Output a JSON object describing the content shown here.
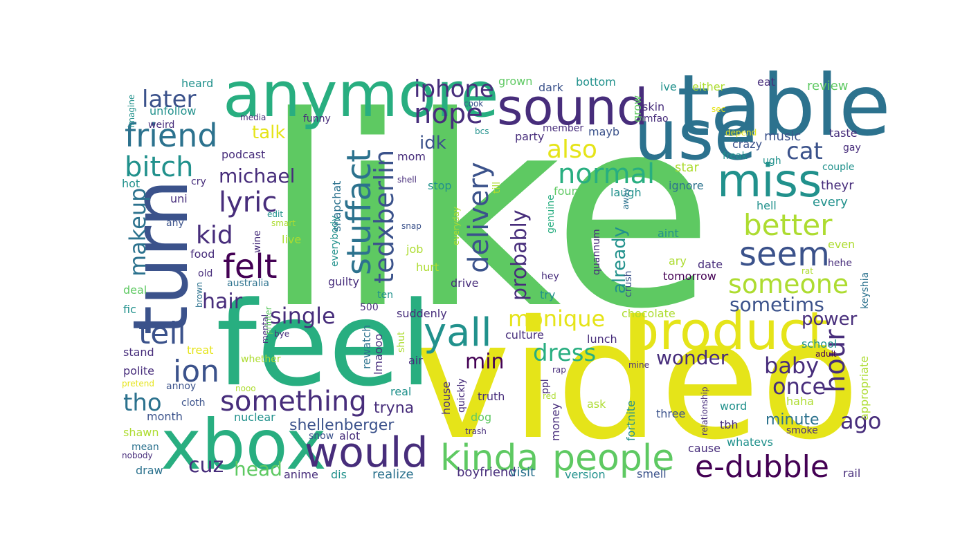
{
  "palette": {
    "purple": "#440154",
    "indigo": "#472d7b",
    "slate": "#3b528b",
    "steel": "#2c728e",
    "teal": "#21918c",
    "sea": "#28ae80",
    "green": "#5ec962",
    "lime": "#addc30",
    "yellow": "#e5e419"
  },
  "words": [
    {
      "text": "like",
      "color": "green"
    },
    {
      "text": "video",
      "color": "yellow"
    },
    {
      "text": "feel",
      "color": "sea"
    },
    {
      "text": "table",
      "color": "steel"
    },
    {
      "text": "use",
      "color": "steel"
    },
    {
      "text": "anymore",
      "color": "sea"
    },
    {
      "text": "sound",
      "color": "indigo"
    },
    {
      "text": "xbox",
      "color": "sea"
    },
    {
      "text": "turn",
      "color": "slate"
    },
    {
      "text": "product",
      "color": "yellow"
    },
    {
      "text": "miss",
      "color": "teal"
    },
    {
      "text": "would",
      "color": "indigo"
    },
    {
      "text": "kinda",
      "color": "green"
    },
    {
      "text": "people",
      "color": "green"
    },
    {
      "text": "friend",
      "color": "steel"
    },
    {
      "text": "bitch",
      "color": "teal"
    },
    {
      "text": "yall",
      "color": "teal"
    },
    {
      "text": "seem",
      "color": "slate"
    },
    {
      "text": "better",
      "color": "lime"
    },
    {
      "text": "e-dubble",
      "color": "purple"
    },
    {
      "text": "stuffact",
      "color": "steel"
    },
    {
      "text": "felt",
      "color": "purple"
    },
    {
      "text": "tedxberlin",
      "color": "slate"
    },
    {
      "text": "delivery",
      "color": "slate"
    },
    {
      "text": "something",
      "color": "indigo"
    },
    {
      "text": "someone",
      "color": "lime"
    },
    {
      "text": "normal",
      "color": "sea"
    },
    {
      "text": "tell",
      "color": "slate"
    },
    {
      "text": "ion",
      "color": "slate"
    },
    {
      "text": "nope",
      "color": "indigo"
    },
    {
      "text": "iphone",
      "color": "indigo"
    },
    {
      "text": "later",
      "color": "slate"
    },
    {
      "text": "lyric",
      "color": "indigo"
    },
    {
      "text": "kid",
      "color": "indigo"
    },
    {
      "text": "also",
      "color": "yellow"
    },
    {
      "text": "cat",
      "color": "slate"
    },
    {
      "text": "hour",
      "color": "indigo"
    },
    {
      "text": "dress",
      "color": "sea"
    },
    {
      "text": "monique",
      "color": "yellow"
    },
    {
      "text": "baby",
      "color": "indigo"
    },
    {
      "text": "once",
      "color": "indigo"
    },
    {
      "text": "ago",
      "color": "indigo"
    },
    {
      "text": "wonder",
      "color": "indigo"
    },
    {
      "text": "sometims",
      "color": "slate"
    },
    {
      "text": "single",
      "color": "indigo"
    },
    {
      "text": "min",
      "color": "purple"
    },
    {
      "text": "tho",
      "color": "steel"
    },
    {
      "text": "hair",
      "color": "indigo"
    },
    {
      "text": "makeup",
      "color": "steel"
    },
    {
      "text": "cuz",
      "color": "indigo"
    },
    {
      "text": "head",
      "color": "green"
    },
    {
      "text": "probably",
      "color": "indigo"
    },
    {
      "text": "power",
      "color": "indigo"
    },
    {
      "text": "talk",
      "color": "yellow"
    },
    {
      "text": "michael",
      "color": "indigo"
    },
    {
      "text": "idk",
      "color": "slate"
    },
    {
      "text": "already",
      "color": "teal"
    },
    {
      "text": "minute",
      "color": "steel"
    },
    {
      "text": "shellenberger",
      "color": "slate"
    },
    {
      "text": "tryna",
      "color": "indigo"
    },
    {
      "text": "realize",
      "color": "steel"
    },
    {
      "text": "boyfriend",
      "color": "indigo"
    },
    {
      "text": "visit",
      "color": "steel"
    },
    {
      "text": "music",
      "color": "slate"
    },
    {
      "text": "star",
      "color": "lime"
    },
    {
      "text": "crazy",
      "color": "slate"
    },
    {
      "text": "every",
      "color": "teal"
    },
    {
      "text": "theyr",
      "color": "indigo"
    },
    {
      "text": "hell",
      "color": "teal"
    },
    {
      "text": "date",
      "color": "indigo"
    },
    {
      "text": "tomorrow",
      "color": "purple"
    },
    {
      "text": "culture",
      "color": "indigo"
    },
    {
      "text": "suddenly",
      "color": "indigo"
    },
    {
      "text": "chocolate",
      "color": "lime"
    },
    {
      "text": "lunch",
      "color": "indigo"
    },
    {
      "text": "school",
      "color": "teal"
    },
    {
      "text": "rail",
      "color": "indigo"
    },
    {
      "text": "version",
      "color": "teal"
    },
    {
      "text": "smell",
      "color": "slate"
    },
    {
      "text": "three",
      "color": "slate"
    },
    {
      "text": "word",
      "color": "teal"
    },
    {
      "text": "tbh",
      "color": "indigo"
    },
    {
      "text": "whatevs",
      "color": "teal"
    },
    {
      "text": "cause",
      "color": "indigo"
    },
    {
      "text": "haha",
      "color": "lime"
    },
    {
      "text": "smoke",
      "color": "indigo"
    },
    {
      "text": "appropriate",
      "color": "lime"
    },
    {
      "text": "keyshia",
      "color": "steel"
    },
    {
      "text": "adult",
      "color": "purple"
    },
    {
      "text": "mine",
      "color": "indigo"
    },
    {
      "text": "relationship",
      "color": "indigo"
    },
    {
      "text": "fortnite",
      "color": "teal"
    },
    {
      "text": "ask",
      "color": "lime"
    },
    {
      "text": "money",
      "color": "indigo"
    },
    {
      "text": "red",
      "color": "lime"
    },
    {
      "text": "rap",
      "color": "indigo"
    },
    {
      "text": "ppl",
      "color": "indigo"
    },
    {
      "text": "truth",
      "color": "indigo"
    },
    {
      "text": "quickly",
      "color": "indigo"
    },
    {
      "text": "house",
      "color": "indigo"
    },
    {
      "text": "air",
      "color": "indigo"
    },
    {
      "text": "shut",
      "color": "lime"
    },
    {
      "text": "real",
      "color": "teal"
    },
    {
      "text": "dog",
      "color": "green"
    },
    {
      "text": "trash",
      "color": "indigo"
    },
    {
      "text": "alot",
      "color": "indigo"
    },
    {
      "text": "snow",
      "color": "slate"
    },
    {
      "text": "dis",
      "color": "teal"
    },
    {
      "text": "anime",
      "color": "indigo"
    },
    {
      "text": "nuclear",
      "color": "teal"
    },
    {
      "text": "rewatch",
      "color": "steel"
    },
    {
      "text": "lmaooo",
      "color": "indigo"
    },
    {
      "text": "500",
      "color": "indigo"
    },
    {
      "text": "ten",
      "color": "teal"
    },
    {
      "text": "guilty",
      "color": "indigo"
    },
    {
      "text": "drive",
      "color": "indigo"
    },
    {
      "text": "hurt",
      "color": "lime"
    },
    {
      "text": "job",
      "color": "lime"
    },
    {
      "text": "everyday",
      "color": "lime"
    },
    {
      "text": "snap",
      "color": "slate"
    },
    {
      "text": "live",
      "color": "lime"
    },
    {
      "text": "edit",
      "color": "teal"
    },
    {
      "text": "smart",
      "color": "lime"
    },
    {
      "text": "nooo",
      "color": "lime"
    },
    {
      "text": "whether",
      "color": "lime"
    },
    {
      "text": "bye",
      "color": "indigo"
    },
    {
      "text": "mental",
      "color": "indigo"
    },
    {
      "text": "printer",
      "color": "green"
    },
    {
      "text": "treat",
      "color": "yellow"
    },
    {
      "text": "stand",
      "color": "indigo"
    },
    {
      "text": "polite",
      "color": "indigo"
    },
    {
      "text": "pretend",
      "color": "yellow"
    },
    {
      "text": "annoy",
      "color": "slate"
    },
    {
      "text": "cloth",
      "color": "slate"
    },
    {
      "text": "month",
      "color": "slate"
    },
    {
      "text": "shawn",
      "color": "lime"
    },
    {
      "text": "mean",
      "color": "steel"
    },
    {
      "text": "nobody",
      "color": "indigo"
    },
    {
      "text": "draw",
      "color": "steel"
    },
    {
      "text": "fic",
      "color": "teal"
    },
    {
      "text": "deal",
      "color": "green"
    },
    {
      "text": "brown",
      "color": "steel"
    },
    {
      "text": "australia",
      "color": "steel"
    },
    {
      "text": "old",
      "color": "indigo"
    },
    {
      "text": "wine",
      "color": "indigo"
    },
    {
      "text": "food",
      "color": "indigo"
    },
    {
      "text": "any",
      "color": "slate"
    },
    {
      "text": "uni",
      "color": "indigo"
    },
    {
      "text": "cry",
      "color": "indigo"
    },
    {
      "text": "hot",
      "color": "teal"
    },
    {
      "text": "podcast",
      "color": "indigo"
    },
    {
      "text": "everybody",
      "color": "teal"
    },
    {
      "text": "snapchat",
      "color": "steel"
    },
    {
      "text": "mom",
      "color": "indigo"
    },
    {
      "text": "shell",
      "color": "indigo"
    },
    {
      "text": "till",
      "color": "lime"
    },
    {
      "text": "stop",
      "color": "teal"
    },
    {
      "text": "party",
      "color": "indigo"
    },
    {
      "text": "genuine",
      "color": "sea"
    },
    {
      "text": "hey",
      "color": "indigo"
    },
    {
      "text": "try",
      "color": "teal"
    },
    {
      "text": "quannum",
      "color": "indigo"
    },
    {
      "text": "crush",
      "color": "slate"
    },
    {
      "text": "found",
      "color": "green"
    },
    {
      "text": "laugh",
      "color": "teal"
    },
    {
      "text": "ignore",
      "color": "steel"
    },
    {
      "text": "aint",
      "color": "teal"
    },
    {
      "text": "ary",
      "color": "lime"
    },
    {
      "text": "away",
      "color": "steel"
    },
    {
      "text": "member",
      "color": "indigo"
    },
    {
      "text": "mayb",
      "color": "slate"
    },
    {
      "text": "dark",
      "color": "slate"
    },
    {
      "text": "grown",
      "color": "green"
    },
    {
      "text": "bottom",
      "color": "teal"
    },
    {
      "text": "grow",
      "color": "green"
    },
    {
      "text": "skin",
      "color": "indigo"
    },
    {
      "text": "lmfao",
      "color": "indigo"
    },
    {
      "text": "ive",
      "color": "teal"
    },
    {
      "text": "either",
      "color": "lime"
    },
    {
      "text": "sec",
      "color": "yellow"
    },
    {
      "text": "eat",
      "color": "indigo"
    },
    {
      "text": "review",
      "color": "green"
    },
    {
      "text": "taste",
      "color": "indigo"
    },
    {
      "text": "depend",
      "color": "yellow"
    },
    {
      "text": "freak",
      "color": "teal"
    },
    {
      "text": "ugh",
      "color": "teal"
    },
    {
      "text": "gay",
      "color": "indigo"
    },
    {
      "text": "couple",
      "color": "teal"
    },
    {
      "text": "even",
      "color": "lime"
    },
    {
      "text": "hehe",
      "color": "indigo"
    },
    {
      "text": "rat",
      "color": "lime"
    },
    {
      "text": "heard",
      "color": "teal"
    },
    {
      "text": "unfollow",
      "color": "teal"
    },
    {
      "text": "weird",
      "color": "indigo"
    },
    {
      "text": "imagine",
      "color": "teal"
    },
    {
      "text": "media",
      "color": "indigo"
    },
    {
      "text": "funny",
      "color": "indigo"
    },
    {
      "text": "cook",
      "color": "slate"
    },
    {
      "text": "bcs",
      "color": "teal"
    }
  ]
}
